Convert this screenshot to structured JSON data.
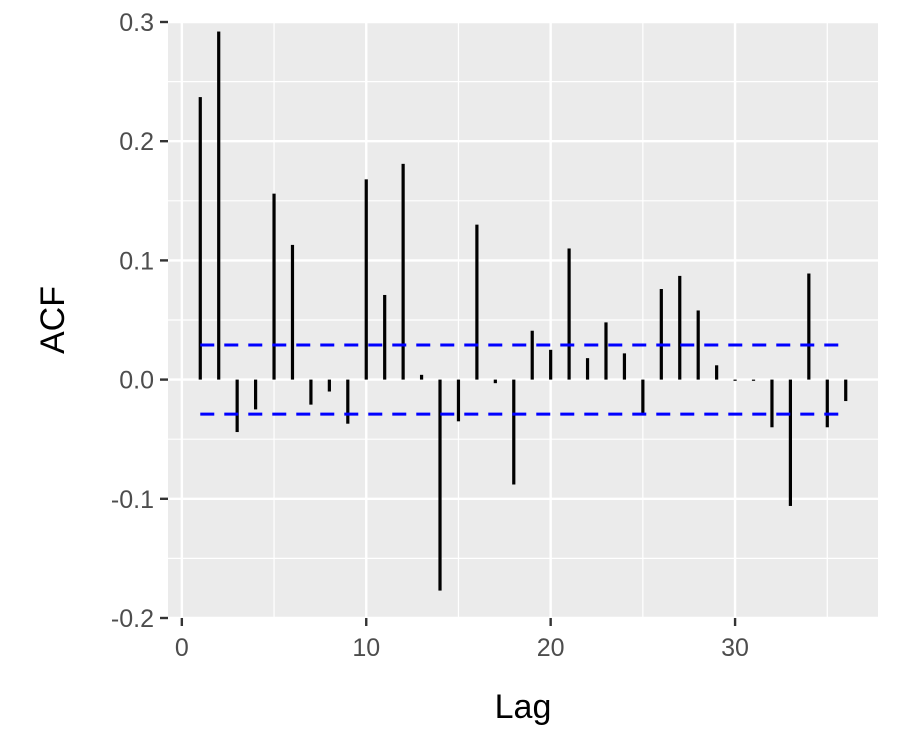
{
  "chart_data": {
    "type": "bar",
    "xlabel": "Lag",
    "ylabel": "ACF",
    "xlim": [
      -0.75,
      37.75
    ],
    "ylim": [
      -0.2,
      0.3
    ],
    "x_ticks": [
      0,
      10,
      20,
      30
    ],
    "x_tick_labels": [
      "0",
      "10",
      "20",
      "30"
    ],
    "y_ticks": [
      -0.2,
      -0.1,
      0.0,
      0.1,
      0.2,
      0.3
    ],
    "y_tick_labels": [
      "-0.2",
      "-0.1",
      "0.0",
      "0.1",
      "0.2",
      "0.3"
    ],
    "lags": [
      1,
      2,
      3,
      4,
      5,
      6,
      7,
      8,
      9,
      10,
      11,
      12,
      13,
      14,
      15,
      16,
      17,
      18,
      19,
      20,
      21,
      22,
      23,
      24,
      25,
      26,
      27,
      28,
      29,
      30,
      31,
      32,
      33,
      34,
      35,
      36
    ],
    "acf": [
      0.237,
      0.292,
      -0.044,
      -0.025,
      0.156,
      0.113,
      -0.021,
      -0.01,
      -0.037,
      0.168,
      0.071,
      0.181,
      0.004,
      -0.177,
      -0.035,
      0.13,
      -0.003,
      -0.088,
      0.041,
      0.025,
      0.11,
      0.018,
      0.048,
      0.022,
      -0.03,
      0.076,
      0.087,
      0.058,
      0.012,
      -0.001,
      -0.001,
      -0.04,
      -0.106,
      0.089,
      -0.04,
      -0.018
    ],
    "confidence_bound": 0.029,
    "grid": true,
    "colors": {
      "panel_background": "#ebebeb",
      "grid_major": "#ffffff",
      "bars": "#000000",
      "confidence_lines": "#0000ff"
    }
  }
}
